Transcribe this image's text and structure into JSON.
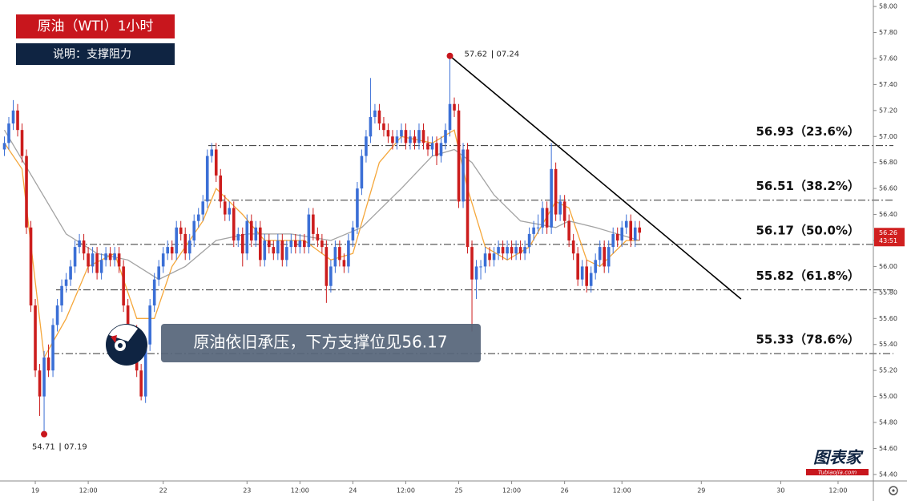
{
  "chart_data": {
    "type": "candlestick",
    "title": "原油（WTI）1小时",
    "subtitle": "说明：支撑阻力",
    "callout": "原油依旧承压，下方支撑位见56.17",
    "logo": "图表家",
    "logo_url": "Tubiaojia.com",
    "up_color": "#3b6fd6",
    "down_color": "#cc1d1d",
    "xlim": [
      -1,
      197
    ],
    "ylim": [
      54.35,
      58.05
    ],
    "xticks": [
      {
        "value": 7,
        "label": "19"
      },
      {
        "value": 19,
        "label": "12:00"
      },
      {
        "value": 36,
        "label": "22"
      },
      {
        "value": 55,
        "label": "23"
      },
      {
        "value": 67,
        "label": "12:00"
      },
      {
        "value": 79,
        "label": "24"
      },
      {
        "value": 91,
        "label": "12:00"
      },
      {
        "value": 103,
        "label": "25"
      },
      {
        "value": 115,
        "label": "12:00"
      },
      {
        "value": 127,
        "label": "26"
      },
      {
        "value": 140,
        "label": "12:00"
      },
      {
        "value": 158,
        "label": "29"
      },
      {
        "value": 176,
        "label": "30"
      },
      {
        "value": 189,
        "label": "12:00"
      }
    ],
    "yticks": [
      {
        "value": 54.4,
        "label": "54.40"
      },
      {
        "value": 54.6,
        "label": "54.60"
      },
      {
        "value": 54.8,
        "label": "54.80"
      },
      {
        "value": 55,
        "label": "55.00"
      },
      {
        "value": 55.2,
        "label": "55.20"
      },
      {
        "value": 55.4,
        "label": "55.40"
      },
      {
        "value": 55.6,
        "label": "55.60"
      },
      {
        "value": 55.8,
        "label": "55.80"
      },
      {
        "value": 56,
        "label": "56.00"
      },
      {
        "value": 56.2,
        "label": "56.20"
      },
      {
        "value": 56.4,
        "label": "56.40"
      },
      {
        "value": 56.6,
        "label": "56.60"
      },
      {
        "value": 56.8,
        "label": "56.80"
      },
      {
        "value": 57,
        "label": "57.00"
      },
      {
        "value": 57.2,
        "label": "57.20"
      },
      {
        "value": 57.4,
        "label": "57.40"
      },
      {
        "value": 57.6,
        "label": "57.60"
      },
      {
        "value": 57.8,
        "label": "57.80"
      },
      {
        "value": 58,
        "label": "58.00"
      }
    ],
    "candles": [
      [
        56.9,
        57.0,
        56.85,
        56.95
      ],
      [
        56.95,
        57.15,
        56.9,
        57.1
      ],
      [
        57.1,
        57.28,
        57.05,
        57.2
      ],
      [
        57.2,
        57.25,
        57.0,
        57.05
      ],
      [
        57.05,
        57.1,
        56.8,
        56.85
      ],
      [
        56.85,
        56.9,
        56.25,
        56.3
      ],
      [
        56.3,
        56.35,
        55.65,
        55.7
      ],
      [
        55.7,
        55.75,
        55.15,
        55.2
      ],
      [
        55.2,
        55.25,
        54.85,
        55.0
      ],
      [
        55.0,
        55.35,
        54.71,
        55.3
      ],
      [
        55.3,
        55.4,
        55.15,
        55.2
      ],
      [
        55.2,
        55.6,
        55.15,
        55.55
      ],
      [
        55.55,
        55.75,
        55.5,
        55.7
      ],
      [
        55.7,
        55.9,
        55.65,
        55.85
      ],
      [
        55.85,
        55.95,
        55.8,
        55.9
      ],
      [
        55.9,
        56.05,
        55.85,
        56.0
      ],
      [
        56.0,
        56.2,
        55.95,
        56.15
      ],
      [
        56.15,
        56.25,
        56.1,
        56.2
      ],
      [
        56.2,
        56.25,
        56.05,
        56.1
      ],
      [
        56.1,
        56.15,
        55.95,
        56.0
      ],
      [
        56.0,
        56.15,
        55.95,
        56.1
      ],
      [
        56.1,
        56.15,
        55.9,
        55.95
      ],
      [
        55.95,
        56.1,
        55.9,
        56.05
      ],
      [
        56.05,
        56.15,
        56.0,
        56.1
      ],
      [
        56.1,
        56.15,
        56.0,
        56.05
      ],
      [
        56.05,
        56.15,
        56.0,
        56.1
      ],
      [
        56.1,
        56.15,
        55.95,
        56.0
      ],
      [
        56.0,
        56.05,
        55.65,
        55.7
      ],
      [
        55.7,
        55.75,
        55.25,
        55.3
      ],
      [
        55.3,
        55.55,
        55.25,
        55.5
      ],
      [
        55.5,
        55.55,
        55.15,
        55.2
      ],
      [
        55.2,
        55.25,
        54.97,
        55.0
      ],
      [
        55.0,
        55.45,
        54.95,
        55.4
      ],
      [
        55.4,
        55.75,
        55.35,
        55.7
      ],
      [
        55.7,
        55.95,
        55.65,
        55.9
      ],
      [
        55.9,
        56.05,
        55.85,
        56.0
      ],
      [
        56.0,
        56.15,
        55.95,
        56.1
      ],
      [
        56.1,
        56.2,
        56.05,
        56.15
      ],
      [
        56.15,
        56.2,
        56.05,
        56.1
      ],
      [
        56.1,
        56.35,
        56.05,
        56.3
      ],
      [
        56.3,
        56.35,
        56.2,
        56.25
      ],
      [
        56.25,
        56.3,
        56.05,
        56.1
      ],
      [
        56.1,
        56.25,
        56.05,
        56.2
      ],
      [
        56.2,
        56.4,
        56.15,
        56.35
      ],
      [
        56.35,
        56.45,
        56.3,
        56.4
      ],
      [
        56.4,
        56.55,
        56.35,
        56.5
      ],
      [
        56.5,
        56.9,
        56.45,
        56.85
      ],
      [
        56.85,
        56.95,
        56.8,
        56.9
      ],
      [
        56.9,
        56.95,
        56.65,
        56.7
      ],
      [
        56.7,
        56.75,
        56.45,
        56.5
      ],
      [
        56.5,
        56.55,
        56.35,
        56.4
      ],
      [
        56.4,
        56.5,
        56.35,
        56.45
      ],
      [
        56.45,
        56.5,
        56.15,
        56.2
      ],
      [
        56.2,
        56.3,
        56.15,
        56.25
      ],
      [
        56.25,
        56.3,
        56.0,
        56.1
      ],
      [
        56.1,
        56.4,
        56.05,
        56.35
      ],
      [
        56.35,
        56.4,
        56.15,
        56.2
      ],
      [
        56.2,
        56.35,
        56.15,
        56.3
      ],
      [
        56.3,
        56.35,
        56.0,
        56.05
      ],
      [
        56.05,
        56.25,
        56.0,
        56.2
      ],
      [
        56.2,
        56.25,
        56.1,
        56.15
      ],
      [
        56.15,
        56.2,
        56.05,
        56.1
      ],
      [
        56.1,
        56.25,
        56.05,
        56.2
      ],
      [
        56.2,
        56.25,
        56.0,
        56.05
      ],
      [
        56.05,
        56.2,
        56.0,
        56.15
      ],
      [
        56.15,
        56.25,
        56.1,
        56.2
      ],
      [
        56.2,
        56.25,
        56.1,
        56.15
      ],
      [
        56.15,
        56.25,
        56.1,
        56.2
      ],
      [
        56.2,
        56.25,
        56.1,
        56.15
      ],
      [
        56.15,
        56.45,
        56.1,
        56.4
      ],
      [
        56.4,
        56.45,
        56.2,
        56.25
      ],
      [
        56.25,
        56.3,
        56.15,
        56.2
      ],
      [
        56.2,
        56.25,
        56.1,
        56.15
      ],
      [
        56.15,
        56.2,
        55.72,
        55.85
      ],
      [
        55.85,
        56.05,
        55.8,
        56.0
      ],
      [
        56.0,
        56.2,
        55.95,
        56.15
      ],
      [
        56.15,
        56.2,
        56.0,
        56.05
      ],
      [
        56.05,
        56.1,
        55.95,
        56.0
      ],
      [
        56.0,
        56.25,
        55.95,
        56.2
      ],
      [
        56.2,
        56.35,
        56.15,
        56.3
      ],
      [
        56.3,
        56.65,
        56.25,
        56.6
      ],
      [
        56.6,
        56.9,
        56.55,
        56.85
      ],
      [
        56.85,
        57.05,
        56.8,
        57.0
      ],
      [
        57.0,
        57.45,
        56.95,
        57.15
      ],
      [
        57.15,
        57.25,
        57.1,
        57.2
      ],
      [
        57.2,
        57.25,
        57.05,
        57.1
      ],
      [
        57.1,
        57.15,
        57.0,
        57.05
      ],
      [
        57.05,
        57.1,
        56.95,
        57.0
      ],
      [
        57.0,
        57.05,
        56.9,
        56.95
      ],
      [
        56.95,
        57.05,
        56.9,
        57.0
      ],
      [
        57.0,
        57.1,
        56.95,
        57.05
      ],
      [
        57.05,
        57.1,
        56.9,
        56.95
      ],
      [
        56.95,
        57.05,
        56.9,
        57.0
      ],
      [
        57.0,
        57.05,
        56.9,
        56.95
      ],
      [
        56.95,
        57.1,
        56.9,
        57.05
      ],
      [
        57.05,
        57.1,
        56.9,
        56.95
      ],
      [
        56.95,
        57.0,
        56.85,
        56.9
      ],
      [
        56.9,
        57.0,
        56.85,
        56.95
      ],
      [
        56.95,
        57.0,
        56.78,
        56.85
      ],
      [
        56.85,
        57.0,
        56.8,
        56.95
      ],
      [
        56.95,
        57.1,
        56.9,
        57.05
      ],
      [
        57.05,
        57.62,
        57.0,
        57.25
      ],
      [
        57.25,
        57.3,
        57.15,
        57.2
      ],
      [
        57.2,
        57.25,
        56.45,
        56.5
      ],
      [
        56.5,
        56.95,
        56.45,
        56.9
      ],
      [
        56.9,
        56.95,
        56.1,
        56.15
      ],
      [
        56.15,
        56.2,
        55.5,
        55.9
      ],
      [
        55.9,
        56.05,
        55.75,
        56.0
      ],
      [
        56.0,
        56.05,
        55.9,
        56.0
      ],
      [
        56.0,
        56.15,
        55.95,
        56.1
      ],
      [
        56.1,
        56.15,
        56.0,
        56.05
      ],
      [
        56.05,
        56.15,
        56.0,
        56.1
      ],
      [
        56.1,
        56.2,
        56.05,
        56.15
      ],
      [
        56.15,
        56.2,
        56.05,
        56.1
      ],
      [
        56.1,
        56.2,
        56.05,
        56.15
      ],
      [
        56.15,
        56.2,
        56.05,
        56.1
      ],
      [
        56.1,
        56.2,
        56.05,
        56.15
      ],
      [
        56.15,
        56.2,
        56.05,
        56.1
      ],
      [
        56.1,
        56.2,
        56.05,
        56.15
      ],
      [
        56.15,
        56.3,
        56.1,
        56.25
      ],
      [
        56.25,
        56.35,
        56.2,
        56.3
      ],
      [
        56.3,
        56.4,
        56.25,
        56.3
      ],
      [
        56.3,
        56.5,
        56.25,
        56.45
      ],
      [
        56.45,
        56.5,
        56.25,
        56.3
      ],
      [
        56.3,
        56.95,
        56.25,
        56.75
      ],
      [
        56.75,
        56.8,
        56.35,
        56.4
      ],
      [
        56.4,
        56.55,
        56.35,
        56.5
      ],
      [
        56.5,
        56.55,
        56.3,
        56.35
      ],
      [
        56.35,
        56.4,
        56.15,
        56.2
      ],
      [
        56.2,
        56.25,
        56.05,
        56.1
      ],
      [
        56.1,
        56.15,
        55.85,
        55.9
      ],
      [
        55.9,
        56.05,
        55.85,
        56.0
      ],
      [
        56.0,
        56.05,
        55.8,
        55.85
      ],
      [
        55.85,
        56.0,
        55.8,
        55.95
      ],
      [
        55.95,
        56.1,
        55.9,
        56.05
      ],
      [
        56.05,
        56.2,
        56.0,
        56.15
      ],
      [
        56.15,
        56.2,
        55.95,
        56.0
      ],
      [
        56.0,
        56.2,
        55.95,
        56.15
      ],
      [
        56.15,
        56.3,
        56.1,
        56.25
      ],
      [
        56.25,
        56.3,
        56.15,
        56.2
      ],
      [
        56.2,
        56.35,
        56.15,
        56.3
      ],
      [
        56.3,
        56.4,
        56.25,
        56.35
      ],
      [
        56.35,
        56.4,
        56.15,
        56.2
      ],
      [
        56.2,
        56.35,
        56.15,
        56.3
      ],
      [
        56.3,
        56.35,
        56.2,
        56.26
      ]
    ],
    "series": [
      {
        "color": "#f5a73b",
        "x": [
          0,
          4,
          9,
          14,
          19,
          25,
          30,
          34,
          38,
          45,
          48,
          54,
          59,
          68,
          74,
          79,
          85,
          90,
          97,
          102,
          105,
          109,
          114,
          119,
          125,
          128,
          132,
          135,
          141,
          144
        ],
        "values": [
          56.95,
          56.75,
          55.3,
          55.6,
          56.0,
          56.1,
          55.6,
          55.6,
          56.0,
          56.35,
          56.6,
          56.4,
          56.2,
          56.2,
          56.05,
          56.1,
          56.8,
          57.0,
          56.95,
          57.05,
          56.6,
          56.15,
          56.05,
          56.15,
          56.5,
          56.45,
          56.05,
          56.0,
          56.2,
          56.2
        ]
      },
      {
        "color": "#a3a3a3",
        "x": [
          0,
          14,
          21,
          28,
          35,
          41,
          48,
          55,
          65,
          74,
          81,
          90,
          97,
          102,
          106,
          111,
          117,
          125,
          128,
          134,
          139,
          144
        ],
        "values": [
          57.05,
          56.25,
          56.1,
          56.05,
          55.9,
          56.0,
          56.2,
          56.25,
          56.25,
          56.2,
          56.3,
          56.6,
          56.85,
          56.9,
          56.8,
          56.55,
          56.35,
          56.3,
          56.35,
          56.3,
          56.25,
          56.2
        ]
      }
    ],
    "levels": [
      {
        "value": 56.93,
        "label": "56.93（23.6%）"
      },
      {
        "value": 56.51,
        "label": "56.51（38.2%）"
      },
      {
        "value": 56.17,
        "label": "56.17（50.0%）"
      },
      {
        "value": 55.82,
        "label": "55.82（61.8%）"
      },
      {
        "value": 55.33,
        "label": "55.33（78.6%）"
      }
    ],
    "trendline": {
      "x": [
        101,
        167
      ],
      "values": [
        57.62,
        55.75
      ]
    },
    "annotations": [
      {
        "x": 101,
        "value": 57.62,
        "date": "07.24"
      },
      {
        "x": 9,
        "value": 54.71,
        "date": "07.19"
      }
    ],
    "last_price_timer": "43:51"
  }
}
